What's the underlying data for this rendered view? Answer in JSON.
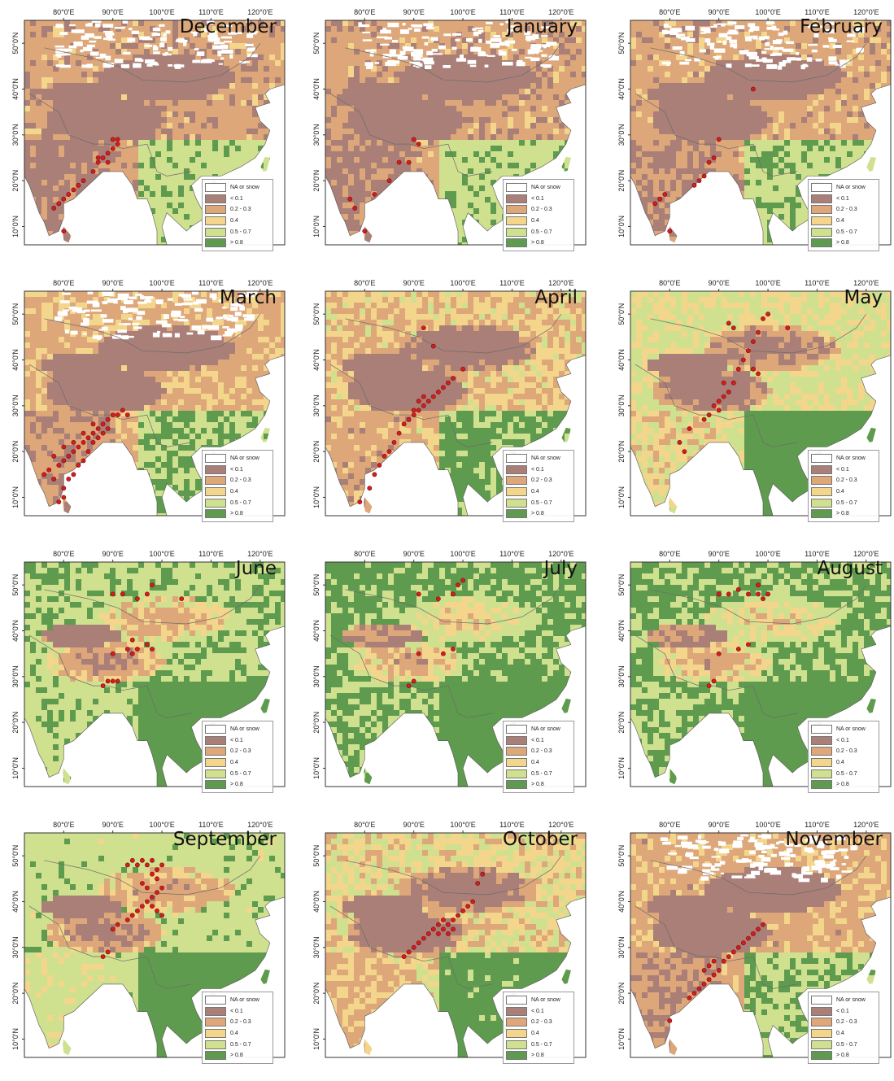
{
  "map": {
    "longitude_labels": [
      "80°0'E",
      "90°0'E",
      "100°0'E",
      "110°0'E",
      "120°0'E"
    ],
    "latitude_labels": [
      "50°0'N",
      "40°0'N",
      "30°0'N",
      "20°0'N",
      "10°0'N"
    ],
    "legend": [
      {
        "label": "NA or snow",
        "color": "#ffffff"
      },
      {
        "label": "< 0.1",
        "color": "#a97f78"
      },
      {
        "label": "0.2 - 0.3",
        "color": "#dda779"
      },
      {
        "label": "0.4",
        "color": "#f3d68c"
      },
      {
        "label": "0.5 - 0.7",
        "color": "#cfe08f"
      },
      {
        "label": "> 0.8",
        "color": "#5f9b4e"
      }
    ],
    "ocean_color": "#ffffff",
    "occurrence_marker_color": "#d41d1d"
  },
  "panels": [
    {
      "month": "December",
      "greenness": 0.15
    },
    {
      "month": "January",
      "greenness": 0.15
    },
    {
      "month": "February",
      "greenness": 0.18
    },
    {
      "month": "March",
      "greenness": 0.25
    },
    {
      "month": "April",
      "greenness": 0.32
    },
    {
      "month": "May",
      "greenness": 0.48
    },
    {
      "month": "June",
      "greenness": 0.7
    },
    {
      "month": "July",
      "greenness": 0.82
    },
    {
      "month": "August",
      "greenness": 0.8
    },
    {
      "month": "September",
      "greenness": 0.62
    },
    {
      "month": "October",
      "greenness": 0.4
    },
    {
      "month": "November",
      "greenness": 0.22
    }
  ],
  "chart_data": {
    "type": "scatter",
    "x_axis": "longitude",
    "y_axis": "latitude",
    "xlim": [
      72,
      125
    ],
    "ylim": [
      6,
      55
    ],
    "legend_placement": "bottom-right",
    "series": [
      {
        "name": "December",
        "points": [
          [
            78,
            14
          ],
          [
            79,
            15
          ],
          [
            80,
            16
          ],
          [
            81,
            17
          ],
          [
            82,
            18
          ],
          [
            83,
            19
          ],
          [
            84,
            20
          ],
          [
            86,
            22
          ],
          [
            87,
            24
          ],
          [
            88,
            25
          ],
          [
            89,
            26
          ],
          [
            90,
            27
          ],
          [
            91,
            28
          ],
          [
            90,
            29
          ],
          [
            91,
            29
          ],
          [
            89,
            24
          ],
          [
            87,
            25
          ],
          [
            80,
            9
          ]
        ]
      },
      {
        "name": "January",
        "points": [
          [
            78,
            14
          ],
          [
            77,
            16
          ],
          [
            80,
            9
          ],
          [
            82,
            17
          ],
          [
            85,
            20
          ],
          [
            87,
            24
          ],
          [
            89,
            24
          ],
          [
            90,
            29
          ],
          [
            91,
            28
          ]
        ]
      },
      {
        "name": "February",
        "points": [
          [
            77,
            15
          ],
          [
            78,
            16
          ],
          [
            79,
            17
          ],
          [
            80,
            9
          ],
          [
            85,
            19
          ],
          [
            86,
            20
          ],
          [
            87,
            21
          ],
          [
            88,
            24
          ],
          [
            89,
            25
          ],
          [
            90,
            29
          ],
          [
            97,
            40
          ]
        ]
      },
      {
        "name": "March",
        "points": [
          [
            76,
            15
          ],
          [
            77,
            16
          ],
          [
            78,
            14
          ],
          [
            79,
            17
          ],
          [
            80,
            18
          ],
          [
            81,
            19
          ],
          [
            82,
            20
          ],
          [
            83,
            21
          ],
          [
            84,
            22
          ],
          [
            85,
            23
          ],
          [
            86,
            24
          ],
          [
            87,
            25
          ],
          [
            88,
            26
          ],
          [
            89,
            27
          ],
          [
            90,
            28
          ],
          [
            91,
            28
          ],
          [
            92,
            29
          ],
          [
            93,
            28
          ],
          [
            80,
            12
          ],
          [
            81,
            14
          ],
          [
            82,
            15
          ],
          [
            83,
            17
          ],
          [
            84,
            18
          ],
          [
            85,
            20
          ],
          [
            86,
            22
          ],
          [
            87,
            23
          ],
          [
            88,
            24
          ],
          [
            89,
            25
          ],
          [
            79,
            9
          ],
          [
            80,
            10
          ],
          [
            78,
            19
          ],
          [
            80,
            21
          ],
          [
            82,
            22
          ],
          [
            84,
            24
          ],
          [
            86,
            26
          ]
        ]
      },
      {
        "name": "April",
        "points": [
          [
            79,
            9
          ],
          [
            81,
            12
          ],
          [
            82,
            15
          ],
          [
            83,
            17
          ],
          [
            84,
            19
          ],
          [
            85,
            20
          ],
          [
            86,
            22
          ],
          [
            87,
            24
          ],
          [
            88,
            26
          ],
          [
            89,
            27
          ],
          [
            90,
            28
          ],
          [
            91,
            29
          ],
          [
            92,
            30
          ],
          [
            93,
            31
          ],
          [
            94,
            32
          ],
          [
            95,
            33
          ],
          [
            96,
            34
          ],
          [
            97,
            35
          ],
          [
            98,
            36
          ],
          [
            100,
            38
          ],
          [
            94,
            43
          ],
          [
            92,
            47
          ],
          [
            90,
            29
          ],
          [
            91,
            31
          ],
          [
            92,
            32
          ]
        ]
      },
      {
        "name": "May",
        "points": [
          [
            83,
            20
          ],
          [
            82,
            22
          ],
          [
            84,
            25
          ],
          [
            87,
            27
          ],
          [
            88,
            28
          ],
          [
            89,
            30
          ],
          [
            90,
            31
          ],
          [
            91,
            32
          ],
          [
            92,
            33
          ],
          [
            93,
            35
          ],
          [
            94,
            38
          ],
          [
            95,
            40
          ],
          [
            96,
            42
          ],
          [
            97,
            44
          ],
          [
            98,
            46
          ],
          [
            99,
            49
          ],
          [
            100,
            50
          ],
          [
            104,
            47
          ],
          [
            93,
            47
          ],
          [
            92,
            48
          ],
          [
            90,
            29
          ],
          [
            91,
            35
          ],
          [
            98,
            37
          ],
          [
            97,
            38
          ]
        ]
      },
      {
        "name": "June",
        "points": [
          [
            88,
            28
          ],
          [
            89,
            29
          ],
          [
            90,
            29
          ],
          [
            91,
            29
          ],
          [
            90,
            35
          ],
          [
            93,
            36
          ],
          [
            94,
            38
          ],
          [
            95,
            36
          ],
          [
            97,
            37
          ],
          [
            98,
            36
          ],
          [
            90,
            48
          ],
          [
            92,
            48
          ],
          [
            95,
            47
          ],
          [
            97,
            48
          ],
          [
            98,
            50
          ],
          [
            104,
            47
          ],
          [
            94,
            35
          ]
        ]
      },
      {
        "name": "July",
        "points": [
          [
            89,
            28
          ],
          [
            90,
            29
          ],
          [
            91,
            35
          ],
          [
            96,
            35
          ],
          [
            98,
            36
          ],
          [
            91,
            48
          ],
          [
            95,
            47
          ],
          [
            98,
            48
          ],
          [
            99,
            50
          ],
          [
            100,
            51
          ]
        ]
      },
      {
        "name": "August",
        "points": [
          [
            88,
            28
          ],
          [
            89,
            29
          ],
          [
            90,
            35
          ],
          [
            94,
            36
          ],
          [
            96,
            37
          ],
          [
            90,
            48
          ],
          [
            92,
            48
          ],
          [
            94,
            49
          ],
          [
            96,
            48
          ],
          [
            98,
            48
          ],
          [
            99,
            47
          ],
          [
            100,
            48
          ],
          [
            98,
            50
          ]
        ]
      },
      {
        "name": "September",
        "points": [
          [
            88,
            28
          ],
          [
            89,
            29
          ],
          [
            90,
            34
          ],
          [
            91,
            35
          ],
          [
            93,
            36
          ],
          [
            94,
            37
          ],
          [
            95,
            38
          ],
          [
            96,
            39
          ],
          [
            97,
            40
          ],
          [
            98,
            41
          ],
          [
            99,
            42
          ],
          [
            100,
            43
          ],
          [
            99,
            45
          ],
          [
            98,
            46
          ],
          [
            99,
            47
          ],
          [
            100,
            48
          ],
          [
            98,
            49
          ],
          [
            97,
            48
          ],
          [
            96,
            49
          ],
          [
            95,
            48
          ],
          [
            96,
            44
          ],
          [
            97,
            43
          ],
          [
            98,
            39
          ],
          [
            99,
            38
          ],
          [
            100,
            37
          ],
          [
            93,
            48
          ],
          [
            94,
            49
          ]
        ]
      },
      {
        "name": "October",
        "points": [
          [
            88,
            28
          ],
          [
            89,
            29
          ],
          [
            90,
            30
          ],
          [
            91,
            31
          ],
          [
            92,
            32
          ],
          [
            93,
            33
          ],
          [
            94,
            34
          ],
          [
            95,
            35
          ],
          [
            96,
            36
          ],
          [
            97,
            35
          ],
          [
            98,
            36
          ],
          [
            99,
            37
          ],
          [
            100,
            38
          ],
          [
            101,
            39
          ],
          [
            102,
            40
          ],
          [
            103,
            44
          ],
          [
            104,
            46
          ],
          [
            95,
            33
          ],
          [
            96,
            34
          ],
          [
            97,
            33
          ],
          [
            98,
            34
          ]
        ]
      },
      {
        "name": "November",
        "points": [
          [
            80,
            14
          ],
          [
            84,
            19
          ],
          [
            85,
            20
          ],
          [
            86,
            21
          ],
          [
            87,
            22
          ],
          [
            88,
            23
          ],
          [
            89,
            24
          ],
          [
            90,
            25
          ],
          [
            91,
            27
          ],
          [
            92,
            28
          ],
          [
            93,
            29
          ],
          [
            94,
            30
          ],
          [
            95,
            31
          ],
          [
            96,
            32
          ],
          [
            97,
            33
          ],
          [
            98,
            34
          ],
          [
            99,
            35
          ],
          [
            87,
            25
          ],
          [
            88,
            26
          ],
          [
            89,
            27
          ]
        ]
      }
    ]
  }
}
